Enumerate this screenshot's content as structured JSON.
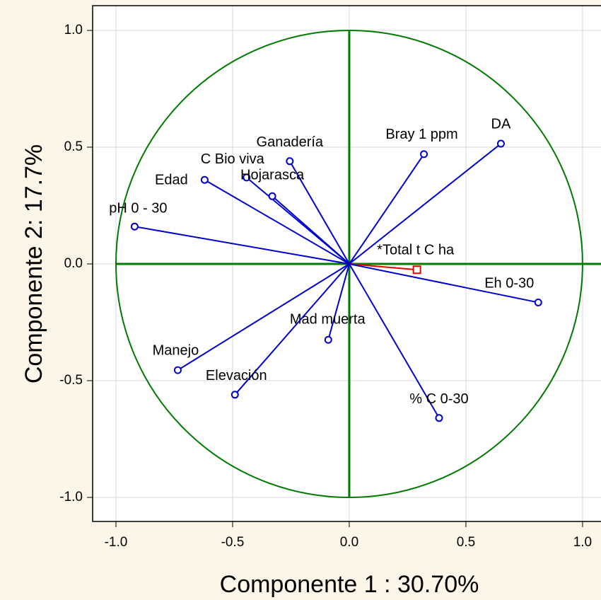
{
  "chart_data": {
    "type": "scatter",
    "x_label": "Componente 1 : 30.70%",
    "y_label": "Componente 2: 17.7%",
    "xlim": [
      -1.1,
      1.076
    ],
    "ylim": [
      -1.1,
      1.1
    ],
    "xticks": [
      {
        "value": -1,
        "label": "-1.0"
      },
      {
        "value": -0.5,
        "label": "-0.5"
      },
      {
        "value": 0,
        "label": "0.0"
      },
      {
        "value": 0.5,
        "label": "0.5"
      },
      {
        "value": 1,
        "label": "1.0"
      }
    ],
    "yticks": [
      {
        "value": -1,
        "label": "-1.0"
      },
      {
        "value": -0.5,
        "label": "-0.5"
      },
      {
        "value": 0,
        "label": "0.0"
      },
      {
        "value": 0.5,
        "label": "0.5"
      },
      {
        "value": 1,
        "label": "1.0"
      }
    ],
    "grid": true,
    "circle_radius": 1,
    "circle_color": "#007a00",
    "color": "#0000cc",
    "points": [
      {
        "label": "DA",
        "x": 0.65,
        "y": 0.515
      },
      {
        "label": "Bray 1 ppm",
        "x": 0.32,
        "y": 0.47
      },
      {
        "label": "Ganadería",
        "x": -0.255,
        "y": 0.44
      },
      {
        "label": "C Bio viva",
        "x": -0.44,
        "y": 0.37
      },
      {
        "label": "Hojarasca",
        "x": -0.33,
        "y": 0.29
      },
      {
        "label": "Edad",
        "x": -0.62,
        "y": 0.36
      },
      {
        "label": "pH 0 - 30",
        "x": -0.92,
        "y": 0.16
      },
      {
        "label": "*Total t C ha",
        "x": 0.29,
        "y": -0.025,
        "color": "#ee0000",
        "marker": "square"
      },
      {
        "label": "Eh 0-30",
        "x": 0.81,
        "y": -0.165
      },
      {
        "label": "Mad muerta",
        "x": -0.09,
        "y": -0.325
      },
      {
        "label": "Manejo",
        "x": -0.735,
        "y": -0.455
      },
      {
        "label": "Elevación",
        "x": -0.49,
        "y": -0.56
      },
      {
        "label": "% C 0-30",
        "x": 0.385,
        "y": -0.66
      }
    ]
  }
}
